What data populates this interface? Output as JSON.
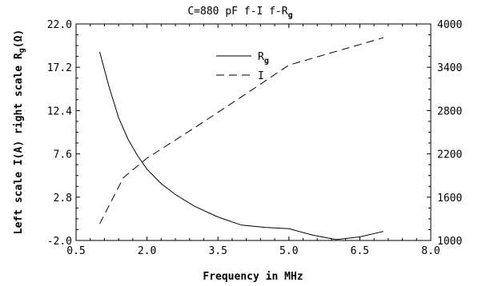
{
  "chart_data": {
    "type": "line",
    "title_main": "C=880 pF f-I f-R",
    "title_sub": "g",
    "xlabel": "Frequency in MHz",
    "ylabel_main": "Left scale I(A) right scale R",
    "ylabel_sub": "g",
    "ylabel_tail": "(Ω)",
    "xlim": [
      0.5,
      8.0
    ],
    "x_ticks": [
      "0.5",
      "2.0",
      "3.5",
      "5.0",
      "6.5",
      "8.0"
    ],
    "ylim_left": [
      -2.0,
      22.0
    ],
    "y_left_ticks": [
      "-2.0",
      "2.8",
      "7.6",
      "12.4",
      "17.2",
      "22.0"
    ],
    "ylim_right": [
      1000,
      4000
    ],
    "y_right_ticks": [
      "1000",
      "1600",
      "2200",
      "2800",
      "3400",
      "4000"
    ],
    "grid": false,
    "legend_position": "top-center",
    "series": [
      {
        "name_main": "R",
        "name_sub": "g",
        "axis": "left",
        "style": "solid",
        "x": [
          1.0,
          1.2,
          1.4,
          1.6,
          1.8,
          2.0,
          2.3,
          2.6,
          3.0,
          3.5,
          4.0,
          4.5,
          5.0,
          5.5,
          6.0,
          6.5,
          7.0
        ],
        "y": [
          18.9,
          15.0,
          11.6,
          9.2,
          7.4,
          5.9,
          4.3,
          3.1,
          1.8,
          0.6,
          -0.3,
          -0.55,
          -0.7,
          -1.4,
          -1.9,
          -1.6,
          -1.0
        ]
      },
      {
        "name_main": "I",
        "name_sub": "",
        "axis": "right",
        "style": "dashed",
        "x": [
          1.0,
          1.5,
          2.0,
          3.0,
          4.0,
          5.0,
          6.0,
          7.0
        ],
        "y": [
          1230,
          1870,
          2140,
          2560,
          2990,
          3430,
          3620,
          3810
        ]
      }
    ]
  }
}
